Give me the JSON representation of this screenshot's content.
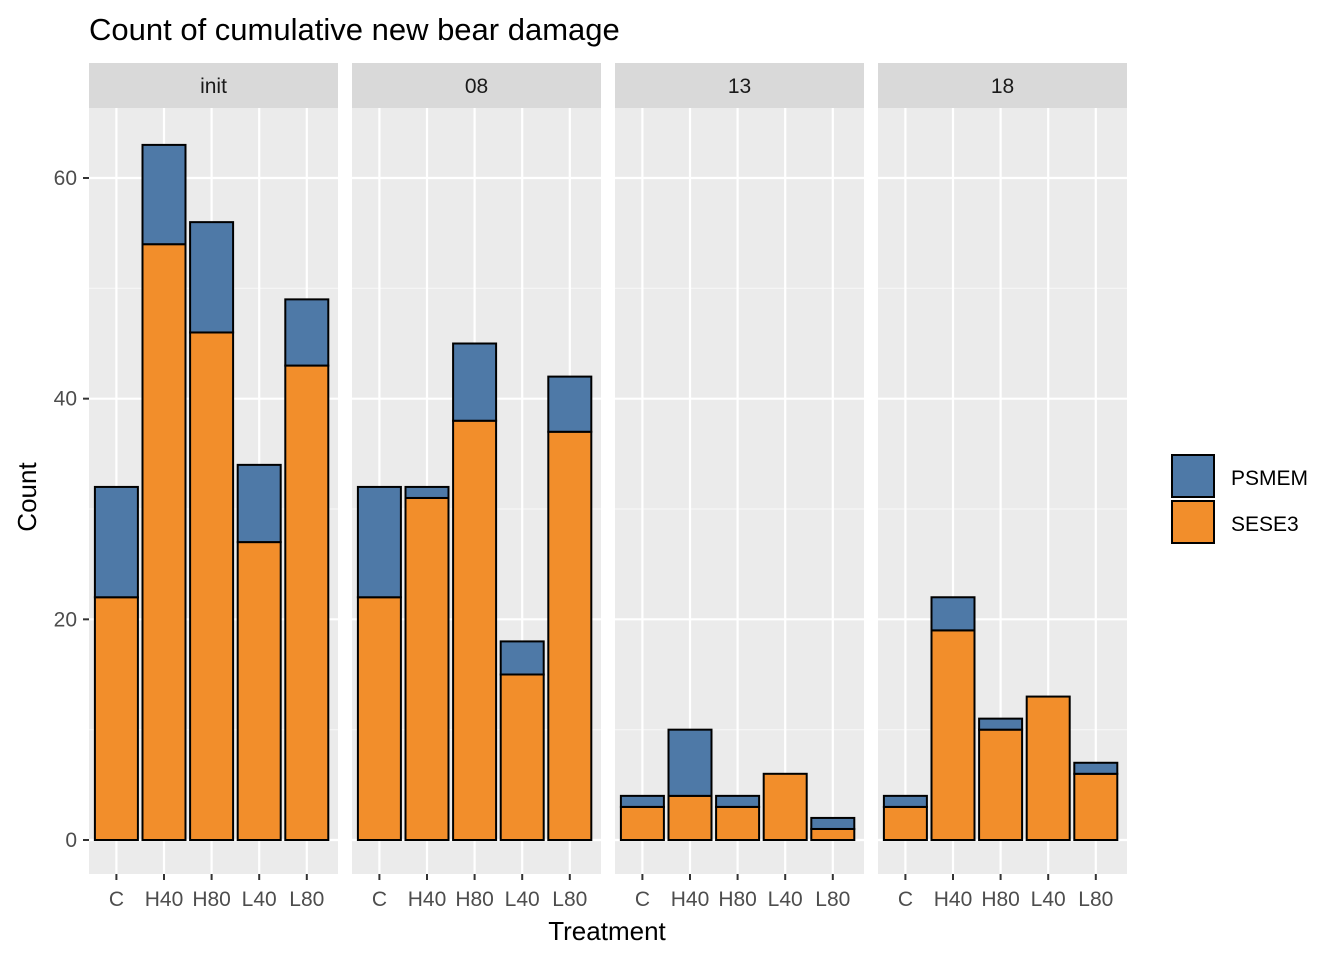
{
  "chart_data": {
    "type": "bar",
    "stacked": true,
    "faceted": true,
    "title": "Count of cumulative new bear damage",
    "xlabel": "Treatment",
    "ylabel": "Count",
    "ylim": [
      -3,
      66
    ],
    "yticks": [
      0,
      20,
      40,
      60
    ],
    "grid": true,
    "legend_position": "right",
    "categories": [
      "C",
      "H40",
      "H80",
      "L40",
      "L80"
    ],
    "series": [
      {
        "name": "PSMEM",
        "color": "#4e79a7"
      },
      {
        "name": "SESE3",
        "color": "#f28e2b"
      }
    ],
    "facets": [
      {
        "label": "init",
        "values": {
          "SESE3": [
            22,
            54,
            46,
            27,
            43
          ],
          "PSMEM": [
            10,
            9,
            10,
            7,
            6
          ]
        }
      },
      {
        "label": "08",
        "values": {
          "SESE3": [
            22,
            31,
            38,
            15,
            37
          ],
          "PSMEM": [
            10,
            1,
            7,
            3,
            5
          ]
        }
      },
      {
        "label": "13",
        "values": {
          "SESE3": [
            3,
            4,
            3,
            6,
            1
          ],
          "PSMEM": [
            1,
            6,
            1,
            0,
            1
          ]
        }
      },
      {
        "label": "18",
        "values": {
          "SESE3": [
            3,
            19,
            10,
            13,
            6
          ],
          "PSMEM": [
            1,
            3,
            1,
            0,
            1
          ]
        }
      }
    ]
  }
}
